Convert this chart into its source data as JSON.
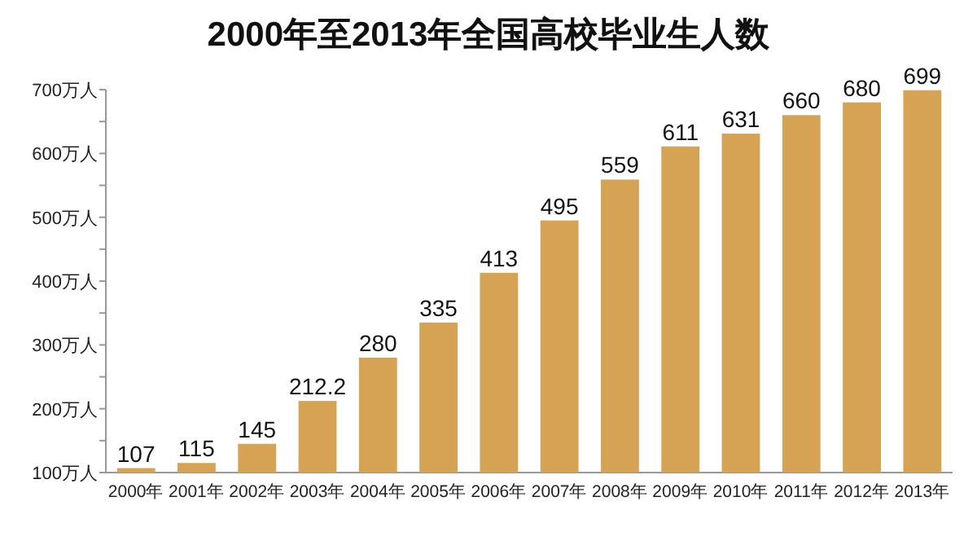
{
  "chart_data": {
    "type": "bar",
    "title": "2000年至2013年全国高校毕业生人数",
    "categories": [
      "2000年",
      "2001年",
      "2002年",
      "2003年",
      "2004年",
      "2005年",
      "2006年",
      "2007年",
      "2008年",
      "2009年",
      "2010年",
      "2011年",
      "2012年",
      "2013年"
    ],
    "values": [
      107,
      115,
      145,
      212.2,
      280,
      335,
      413,
      495,
      559,
      611,
      631,
      660,
      680,
      699
    ],
    "value_labels": [
      "107",
      "115",
      "145",
      "212.2",
      "280",
      "335",
      "413",
      "495",
      "559",
      "611",
      "631",
      "660",
      "680",
      "699"
    ],
    "color": "#d6a354",
    "ylim": [
      100,
      700
    ],
    "yticks": [
      {
        "value": 100,
        "label": "100万人"
      },
      {
        "value": 150,
        "label": null
      },
      {
        "value": 200,
        "label": "200万人"
      },
      {
        "value": 250,
        "label": null
      },
      {
        "value": 300,
        "label": "300万人"
      },
      {
        "value": 350,
        "label": null
      },
      {
        "value": 400,
        "label": "400万人"
      },
      {
        "value": 450,
        "label": null
      },
      {
        "value": 500,
        "label": "500万人"
      },
      {
        "value": 550,
        "label": null
      },
      {
        "value": 600,
        "label": "600万人"
      },
      {
        "value": 650,
        "label": null
      },
      {
        "value": 700,
        "label": "700万人"
      }
    ],
    "grid": false
  }
}
